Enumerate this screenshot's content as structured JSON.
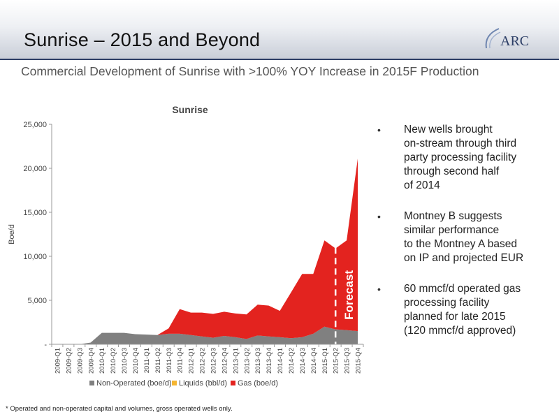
{
  "header": {
    "title": "Sunrise – 2015 and Beyond",
    "subtitle": "Commercial Development of Sunrise with >100% YOY Increase in 2015F Production",
    "logo_text": "ARC"
  },
  "bullets": [
    "New wells brought\non-stream through third\nparty processing facility\nthrough second half\nof 2014",
    "Montney B suggests\nsimilar performance\nto the Montney A based\non IP and projected EUR",
    "60 mmcf/d operated gas\nprocessing facility\nplanned for late 2015\n(120 mmcf/d approved)"
  ],
  "footnote": "* Operated and non-operated capital and volumes, gross operated wells only.",
  "colors": {
    "non_operated": "#808080",
    "liquids": "#f5b531",
    "gas": "#e3231f",
    "header_line": "#2c3e66"
  },
  "chart_data": {
    "type": "area",
    "stacked": true,
    "title": "Sunrise",
    "ylabel": "Boe/d",
    "xlabel": "",
    "ylim": [
      0,
      25000
    ],
    "yticks": [
      0,
      5000,
      10000,
      15000,
      20000,
      25000
    ],
    "ytick_labels": [
      "-",
      "5,000",
      "10,000",
      "15,000",
      "20,000",
      "25,000"
    ],
    "grid": false,
    "legend_position": "bottom",
    "annotation": "Forecast",
    "forecast_start": "2015-Q2",
    "categories": [
      "2009-Q1",
      "2009-Q2",
      "2009-Q3",
      "2009-Q4",
      "2010-Q1",
      "2010-Q2",
      "2010-Q3",
      "2010-Q4",
      "2011-Q1",
      "2011-Q2",
      "2011-Q3",
      "2011-Q4",
      "2012-Q1",
      "2012-Q2",
      "2012-Q3",
      "2012-Q4",
      "2013-Q1",
      "2013-Q2",
      "2013-Q3",
      "2013-Q4",
      "2014-Q1",
      "2014-Q2",
      "2014-Q3",
      "2014-Q4",
      "2015-Q1",
      "2015-Q2",
      "2015-Q3",
      "2015-Q4"
    ],
    "series": [
      {
        "name": "Non-Operated (boe/d)",
        "color": "#808080",
        "values": [
          0,
          0,
          0,
          200,
          1300,
          1300,
          1300,
          1150,
          1100,
          1050,
          1200,
          1200,
          1050,
          900,
          750,
          950,
          800,
          600,
          1000,
          900,
          800,
          700,
          800,
          1200,
          2000,
          1700,
          1600,
          1500
        ]
      },
      {
        "name": "Liquids (bbl/d)",
        "color": "#f5b531",
        "values": [
          0,
          0,
          0,
          0,
          0,
          0,
          0,
          0,
          0,
          0,
          0,
          0,
          0,
          0,
          0,
          0,
          0,
          0,
          0,
          0,
          0,
          0,
          0,
          0,
          0,
          0,
          0,
          0
        ]
      },
      {
        "name": "Gas (boe/d)",
        "color": "#e3231f",
        "values": [
          0,
          0,
          0,
          0,
          0,
          0,
          0,
          0,
          0,
          0,
          600,
          2800,
          2550,
          2700,
          2700,
          2750,
          2700,
          2800,
          3500,
          3500,
          3000,
          5200,
          7200,
          6800,
          9800,
          9200,
          10200,
          19600
        ]
      }
    ]
  }
}
